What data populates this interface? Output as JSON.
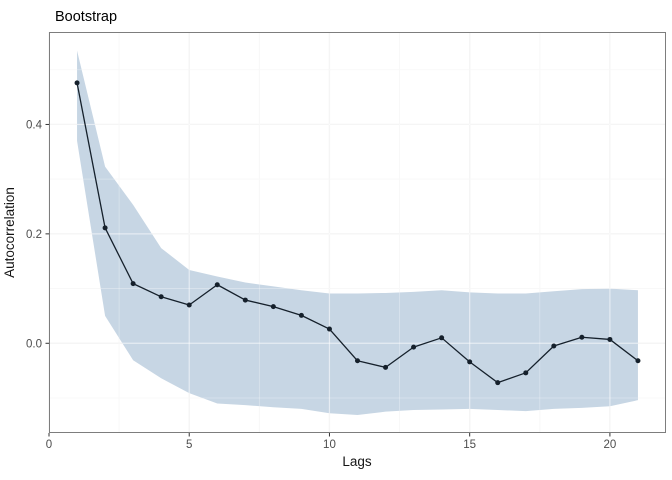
{
  "chart_data": {
    "type": "line",
    "title": "Bootstrap",
    "xlabel": "Lags",
    "ylabel": "Autocorrelation",
    "legend": "none",
    "grid": true,
    "xlim": [
      0,
      22
    ],
    "ylim": [
      -0.164,
      0.569
    ],
    "x": [
      1,
      2,
      3,
      4,
      5,
      6,
      7,
      8,
      9,
      10,
      11,
      12,
      13,
      14,
      15,
      16,
      17,
      18,
      19,
      20,
      21
    ],
    "acf": [
      0.476,
      0.211,
      0.109,
      0.085,
      0.07,
      0.107,
      0.079,
      0.067,
      0.051,
      0.026,
      -0.032,
      -0.044,
      -0.007,
      0.01,
      -0.034,
      -0.072,
      -0.054,
      -0.005,
      0.011,
      0.007,
      -0.032
    ],
    "band_upper": [
      0.535,
      0.323,
      0.253,
      0.174,
      0.134,
      0.122,
      0.111,
      0.104,
      0.097,
      0.091,
      0.091,
      0.092,
      0.094,
      0.097,
      0.093,
      0.091,
      0.091,
      0.095,
      0.099,
      0.1,
      0.097
    ],
    "band_lower": [
      0.37,
      0.05,
      -0.031,
      -0.064,
      -0.091,
      -0.11,
      -0.113,
      -0.117,
      -0.12,
      -0.128,
      -0.131,
      -0.125,
      -0.122,
      -0.121,
      -0.12,
      -0.122,
      -0.124,
      -0.12,
      -0.118,
      -0.115,
      -0.104
    ],
    "x_tick_values": [
      0,
      5,
      10,
      15,
      20
    ],
    "x_tick_labels": [
      "0",
      "5",
      "10",
      "15",
      "20"
    ],
    "x_minor_values": [
      2.5,
      7.5,
      12.5,
      17.5
    ],
    "y_tick_values": [
      0.0,
      0.2,
      0.4
    ],
    "y_tick_labels": [
      "0.0",
      "0.2",
      "0.4"
    ],
    "y_minor_values": [
      -0.1,
      0.1,
      0.3,
      0.5
    ],
    "colors": {
      "ribbon": "#c7d6e4",
      "line": "#15202b",
      "point": "#15202b",
      "grid_major": "#e9e9e9",
      "grid_minor": "#f3f3f3",
      "grid_over_major": "rgba(255,255,255,0.55)",
      "grid_over_minor": "rgba(255,255,255,0.35)",
      "panel_border": "#7d7d7d",
      "tick": "#333333",
      "tick_label": "#4d4d4d",
      "title": "#000000",
      "axis_title": "#141414"
    }
  }
}
